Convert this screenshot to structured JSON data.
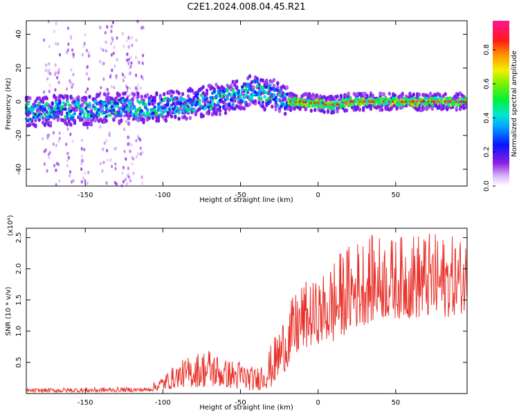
{
  "title": "C2E1.2024.008.04.45.R21",
  "chart_data": [
    {
      "type": "heatmap",
      "xlabel": "Height of straight line (km)",
      "ylabel": "Frequency (Hz)",
      "xlim": [
        -188,
        96
      ],
      "ylim": [
        -50,
        48
      ],
      "xticks": [
        -150,
        -100,
        -50,
        0,
        50
      ],
      "yticks": [
        -40,
        -20,
        0,
        20,
        40
      ],
      "colorbar": {
        "label": "Normalized spectral amplitude",
        "range": [
          0,
          0.97
        ],
        "ticks": [
          0.0,
          0.2,
          0.4,
          0.6,
          0.8
        ],
        "colormap": "rainbow (white-violet-blue-cyan-green-yellow-red-magenta)"
      },
      "ridge": {
        "x": [
          -188,
          -170,
          -150,
          -130,
          -110,
          -90,
          -75,
          -60,
          -50,
          -45,
          -40,
          -35,
          -30,
          -25,
          -20,
          -10,
          0,
          10,
          20,
          40,
          60,
          80,
          96
        ],
        "frequency": [
          -6,
          -5,
          -5,
          -4,
          -4,
          -2,
          0,
          2,
          4,
          6,
          8,
          4,
          5,
          2,
          0,
          0,
          -1,
          -2,
          0,
          0,
          0,
          0,
          0
        ]
      },
      "peak_amplitude_x_range": [
        -20,
        96
      ]
    },
    {
      "type": "line",
      "xlabel": "Height of straight line (km)",
      "ylabel": "SNR (10 * v/v)",
      "y_scale_label": "(x10⁴)",
      "xlim": [
        -188,
        96
      ],
      "ylim": [
        0,
        2.65
      ],
      "xticks": [
        -150,
        -100,
        -50,
        0,
        50
      ],
      "yticks": [
        0.5,
        1.0,
        1.5,
        2.0,
        2.5
      ],
      "color": "#e8312a",
      "envelope": {
        "x": [
          -188,
          -150,
          -110,
          -100,
          -90,
          -80,
          -70,
          -60,
          -50,
          -40,
          -30,
          -20,
          -10,
          0,
          10,
          20,
          30,
          40,
          50,
          60,
          70,
          80,
          96
        ],
        "min": [
          0.02,
          0.02,
          0.03,
          0.05,
          0.1,
          0.1,
          0.1,
          0.1,
          0.05,
          0.05,
          0.1,
          0.4,
          0.7,
          0.8,
          0.8,
          1.0,
          1.1,
          1.2,
          1.2,
          1.2,
          1.2,
          1.2,
          1.3
        ],
        "max": [
          0.08,
          0.1,
          0.1,
          0.3,
          0.5,
          0.65,
          0.75,
          0.55,
          0.55,
          0.4,
          0.8,
          1.4,
          1.8,
          1.8,
          2.2,
          2.4,
          2.55,
          2.55,
          2.5,
          2.6,
          2.6,
          2.55,
          2.5
        ]
      }
    }
  ]
}
